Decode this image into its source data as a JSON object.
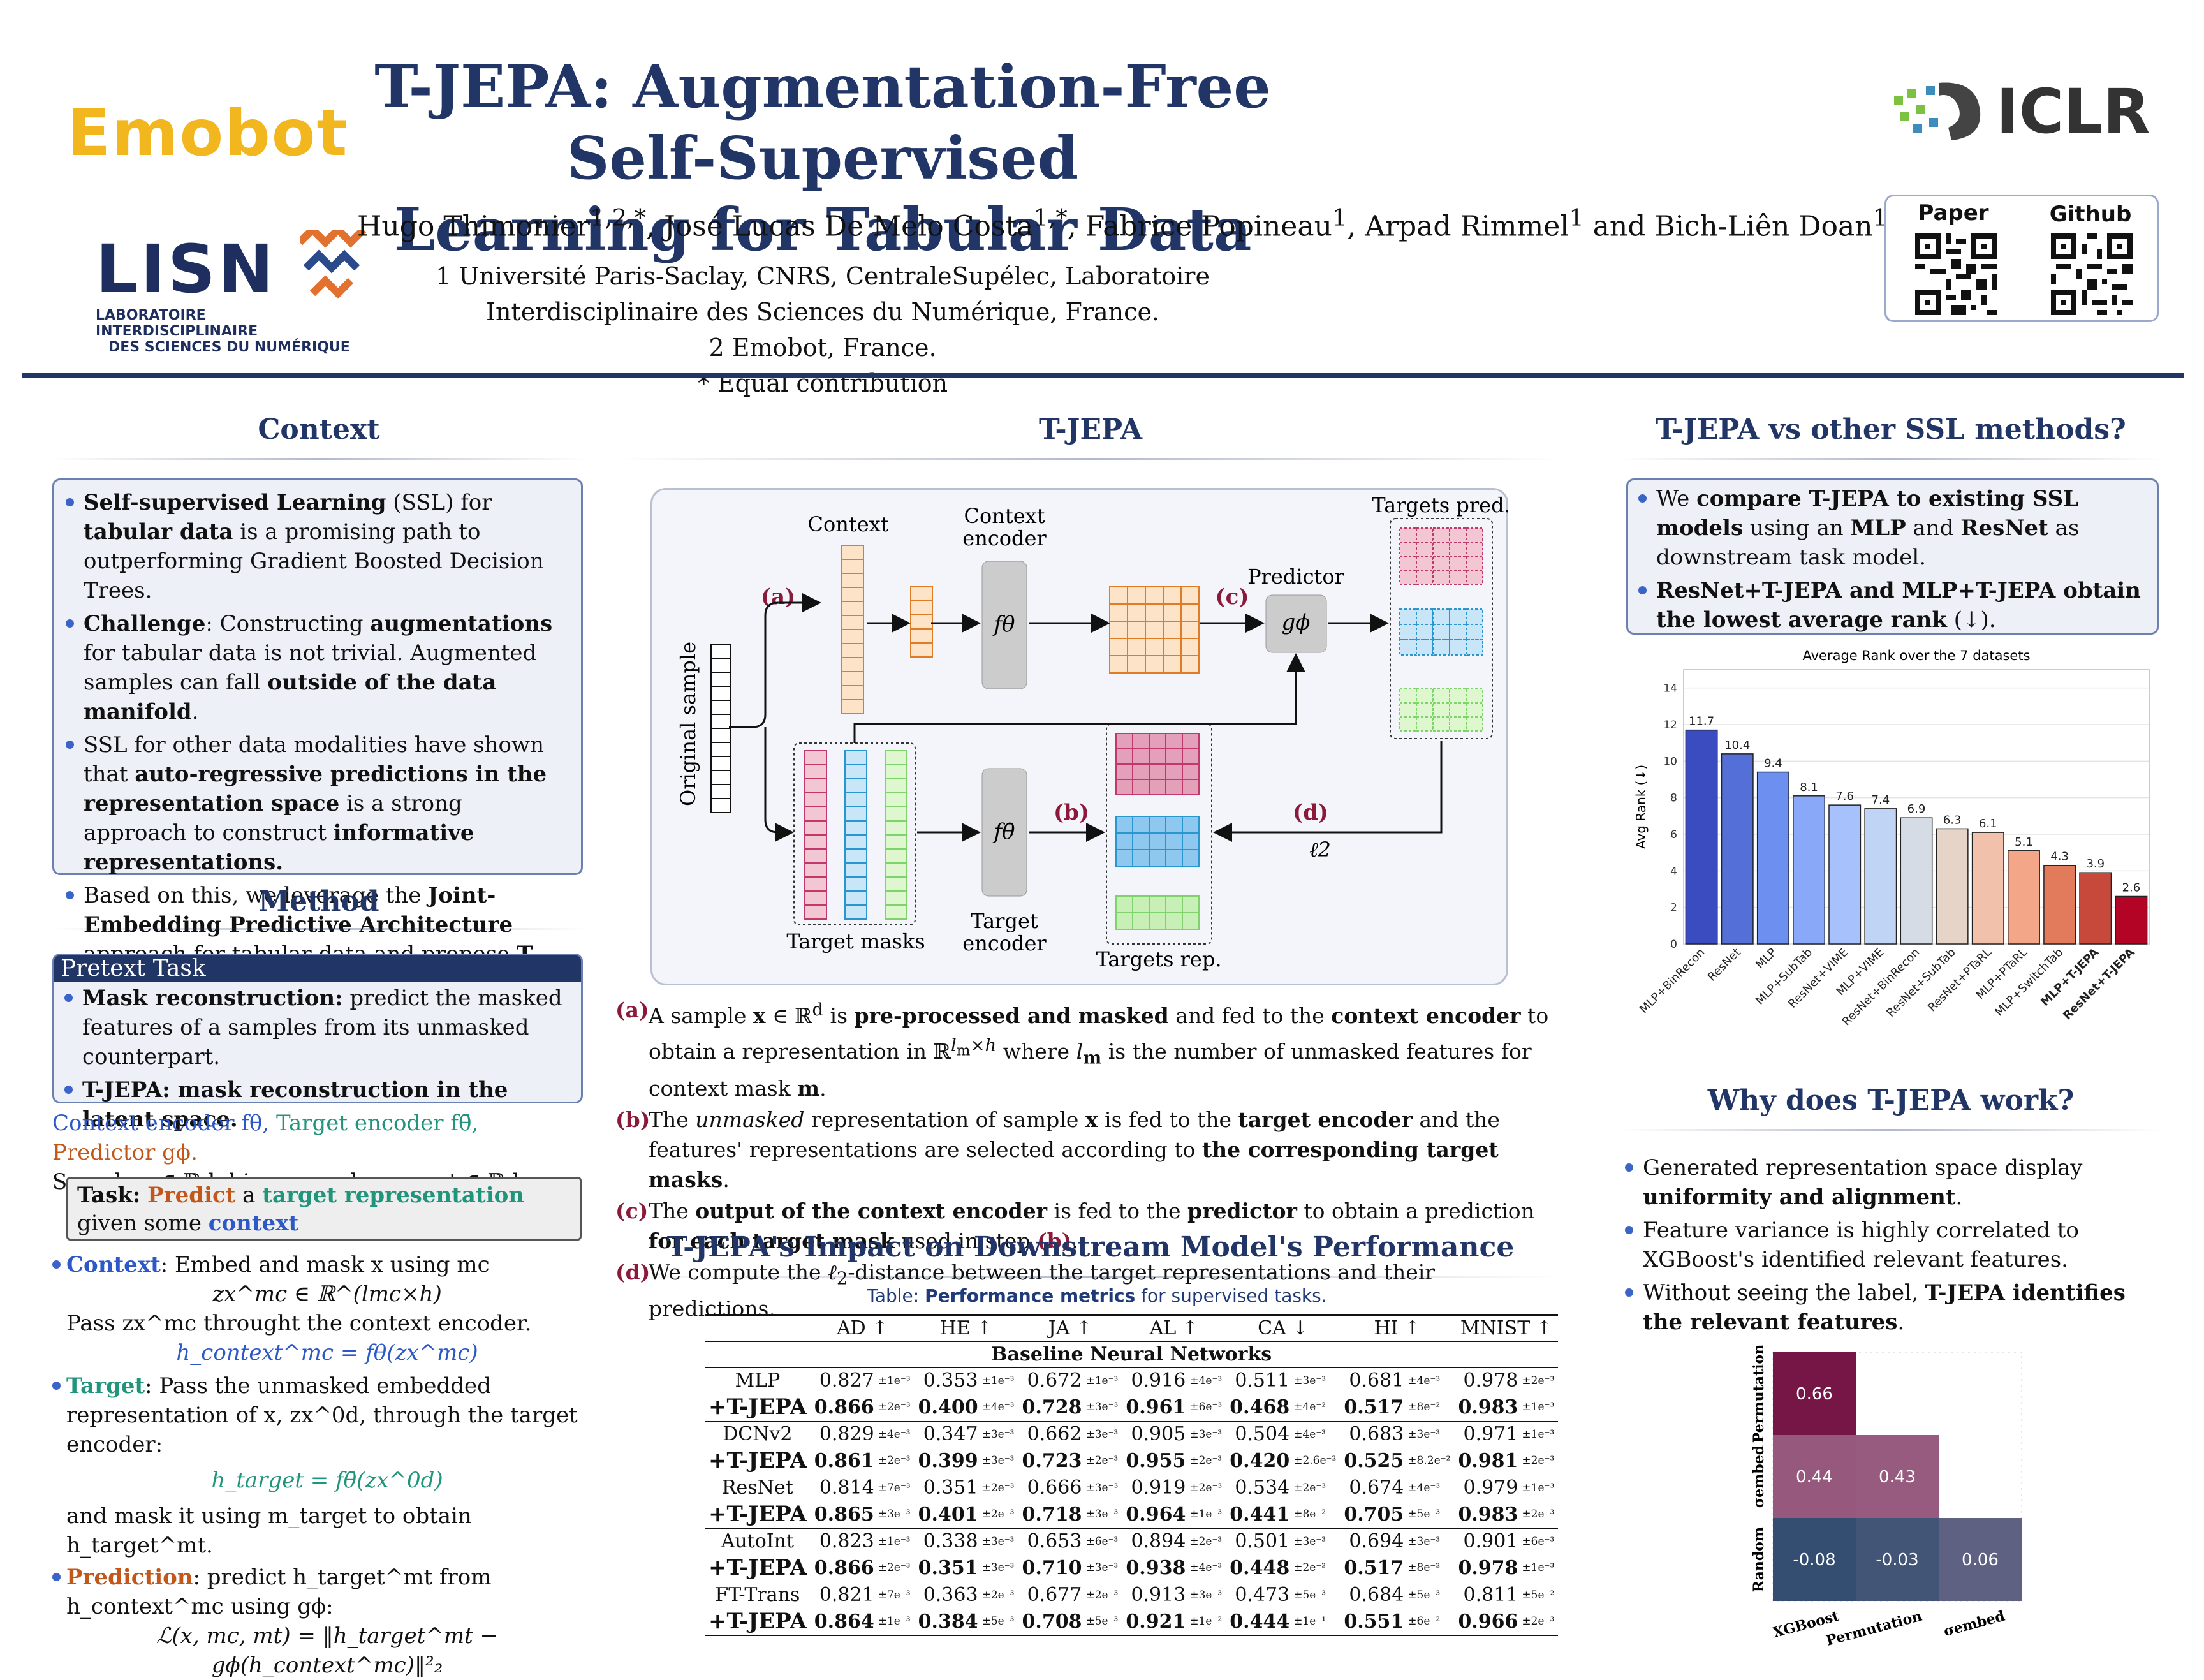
{
  "header": {
    "title_line1": "T-JEPA: Augmentation-Free Self-Supervised",
    "title_line2": "Learning for Tabular Data",
    "authors": "Hugo Thimonier1,2,*, José Lucas De Melo Costa1,*, Fabrice Popineau1, Arpad Rimmel1 and Bich-Liên Doan1",
    "affiliation1": "1 Université Paris-Saclay, CNRS, CentraleSupélec, Laboratoire Interdisciplinaire des Sciences du Numérique, France.",
    "affiliation2": "2 Emobot, France.",
    "affiliation3": "* Equal contribution",
    "logo_emobot": "Emobot",
    "logo_lisn": "LISN",
    "logo_lisn_sub1": "LABORATOIRE INTERDISCIPLINAIRE",
    "logo_lisn_sub2": "DES SCIENCES DU NUMÉRIQUE",
    "logo_iclr": "ICLR",
    "qr_paper_label": "Paper",
    "qr_github_label": "Github"
  },
  "context": {
    "heading": "Context",
    "bullets": [
      "Self-supervised Learning (SSL) for tabular data is a promising path to outperforming Gradient Boosted Decision Trees.",
      "Challenge: Constructing augmentations for tabular data is not trivial. Augmented samples can fall outside of the data manifold.",
      "SSL for other data modalities have shown that auto-regressive predictions in the representation space is a strong approach to construct informative representations.",
      "Based on this, we leverage the Joint-Embedding Predictive Architecture approach for tabular data and propose T-JEPA."
    ]
  },
  "method": {
    "heading": "Method",
    "pretext_title": "Pretext Task",
    "pretext_bullets": [
      "Mask reconstruction: predict the masked features of a samples from its unmasked counterpart.",
      "T-JEPA: mask reconstruction in the latent space."
    ],
    "notation_line1_a": "Context encoder fθ,",
    "notation_line1_b": "Target encoder fθ̄,",
    "notation_line1_c": "Predictor gϕ.",
    "notation_line2": "Sample x ∈ ℝd, binary masks mc, mt ∈ ℝd.",
    "task_label": "Task:",
    "task_predict": "Predict",
    "task_a": "a",
    "task_target": "target representation",
    "task_given": "given some",
    "task_context": "context",
    "context_label": "Context",
    "context_text": ": Embed and mask x using mc",
    "context_eq1": "zx^mc ∈ ℝ^(lmc×h)",
    "context_text2": "Pass zx^mc throught the context encoder.",
    "context_eq2": "h_context^mc = fθ(zx^mc)",
    "target_label": "Target",
    "target_text": ": Pass the unmasked embedded representation of x, zx^0d, through the target encoder:",
    "target_eq": "h_target = fθ̄(zx^0d)",
    "target_text2": "and mask it using m_target to obtain h_target^mt.",
    "prediction_label": "Prediction",
    "prediction_text": ": predict h_target^mt from h_context^mc using gϕ:",
    "loss_eq": "ℒ(x, mc, mt) = ‖h_target^mt − gϕ(h_context^mc)‖²₂"
  },
  "tjepa": {
    "heading": "T-JEPA",
    "diagram": {
      "original_sample": "Original sample",
      "context": "Context",
      "context_encoder1": "Context",
      "context_encoder2": "encoder",
      "f_theta": "fθ",
      "predictor": "Predictor",
      "g_phi": "gϕ",
      "targets_pred": "Targets pred.",
      "target_masks": "Target masks",
      "f_theta_bar": "fθ̄",
      "target_encoder1": "Target",
      "target_encoder2": "encoder",
      "targets_rep": "Targets rep.",
      "l2": "ℓ2",
      "step_a": "(a)",
      "step_b": "(b)",
      "step_c": "(c)",
      "step_d": "(d)"
    },
    "steps": [
      {
        "tag": "(a)",
        "text": "A sample x ∈ ℝd is pre-processed and masked and fed to the context encoder to obtain a representation in ℝ^(lm×h) where lm is the number of unmasked features for context mask m."
      },
      {
        "tag": "(b)",
        "text": "The unmasked representation of sample x is fed to the target encoder and the features' representations are selected according to the corresponding target masks."
      },
      {
        "tag": "(c)",
        "text": "The output of the context encoder is fed to the predictor to obtain a prediction for each target mask used in step (b)."
      },
      {
        "tag": "(d)",
        "text": "We compute the ℓ2-distance between the target representations and their predictions."
      }
    ]
  },
  "impact": {
    "heading": "T-JEPA's Impact on Downstream Model's Performance",
    "caption_prefix": "Table:",
    "caption_bold": "Performance metrics",
    "caption_rest": "for supervised tasks.",
    "columns": [
      "AD ↑",
      "HE ↑",
      "JA ↑",
      "AL ↑",
      "CA ↓",
      "HI ↑",
      "MNIST ↑"
    ],
    "group": "Baseline Neural Networks",
    "rows": [
      {
        "name": "MLP",
        "bold": false,
        "cells": [
          [
            "0.827",
            "±1e⁻³"
          ],
          [
            "0.353",
            "±1e⁻³"
          ],
          [
            "0.672",
            "±1e⁻³"
          ],
          [
            "0.916",
            "±4e⁻³"
          ],
          [
            "0.511",
            "±3e⁻³"
          ],
          [
            "0.681",
            "±4e⁻³"
          ],
          [
            "0.978",
            "±2e⁻³"
          ]
        ]
      },
      {
        "name": "+T-JEPA",
        "bold": true,
        "cells": [
          [
            "0.866",
            "±2e⁻³"
          ],
          [
            "0.400",
            "±4e⁻³"
          ],
          [
            "0.728",
            "±3e⁻³"
          ],
          [
            "0.961",
            "±6e⁻³"
          ],
          [
            "0.468",
            "±4e⁻²"
          ],
          [
            "0.517",
            "±8e⁻²"
          ],
          [
            "0.983",
            "±1e⁻³"
          ]
        ]
      },
      {
        "name": "DCNv2",
        "bold": false,
        "cells": [
          [
            "0.829",
            "±4e⁻³"
          ],
          [
            "0.347",
            "±3e⁻³"
          ],
          [
            "0.662",
            "±3e⁻³"
          ],
          [
            "0.905",
            "±3e⁻³"
          ],
          [
            "0.504",
            "±4e⁻³"
          ],
          [
            "0.683",
            "±3e⁻³"
          ],
          [
            "0.971",
            "±1e⁻³"
          ]
        ]
      },
      {
        "name": "+T-JEPA",
        "bold": true,
        "cells": [
          [
            "0.861",
            "±2e⁻³"
          ],
          [
            "0.399",
            "±3e⁻³"
          ],
          [
            "0.723",
            "±2e⁻³"
          ],
          [
            "0.955",
            "±2e⁻³"
          ],
          [
            "0.420",
            "±2.6e⁻²"
          ],
          [
            "0.525",
            "±8.2e⁻²"
          ],
          [
            "0.981",
            "±2e⁻³"
          ]
        ]
      },
      {
        "name": "ResNet",
        "bold": false,
        "cells": [
          [
            "0.814",
            "±7e⁻³"
          ],
          [
            "0.351",
            "±2e⁻³"
          ],
          [
            "0.666",
            "±3e⁻³"
          ],
          [
            "0.919",
            "±2e⁻³"
          ],
          [
            "0.534",
            "±2e⁻³"
          ],
          [
            "0.674",
            "±4e⁻³"
          ],
          [
            "0.979",
            "±1e⁻³"
          ]
        ]
      },
      {
        "name": "+T-JEPA",
        "bold": true,
        "cells": [
          [
            "0.865",
            "±3e⁻³"
          ],
          [
            "0.401",
            "±2e⁻³"
          ],
          [
            "0.718",
            "±3e⁻³"
          ],
          [
            "0.964",
            "±1e⁻³"
          ],
          [
            "0.441",
            "±8e⁻²"
          ],
          [
            "0.705",
            "±5e⁻³"
          ],
          [
            "0.983",
            "±2e⁻³"
          ]
        ]
      },
      {
        "name": "AutoInt",
        "bold": false,
        "cells": [
          [
            "0.823",
            "±1e⁻³"
          ],
          [
            "0.338",
            "±3e⁻³"
          ],
          [
            "0.653",
            "±6e⁻³"
          ],
          [
            "0.894",
            "±2e⁻³"
          ],
          [
            "0.501",
            "±3e⁻³"
          ],
          [
            "0.694",
            "±3e⁻³"
          ],
          [
            "0.901",
            "±6e⁻³"
          ]
        ]
      },
      {
        "name": "+T-JEPA",
        "bold": true,
        "cells": [
          [
            "0.866",
            "±2e⁻³"
          ],
          [
            "0.351",
            "±3e⁻³"
          ],
          [
            "0.710",
            "±3e⁻³"
          ],
          [
            "0.938",
            "±4e⁻³"
          ],
          [
            "0.448",
            "±2e⁻²"
          ],
          [
            "0.517",
            "±8e⁻²"
          ],
          [
            "0.978",
            "±1e⁻³"
          ]
        ]
      },
      {
        "name": "FT-Trans",
        "bold": false,
        "cells": [
          [
            "0.821",
            "±7e⁻³"
          ],
          [
            "0.363",
            "±2e⁻³"
          ],
          [
            "0.677",
            "±2e⁻³"
          ],
          [
            "0.913",
            "±3e⁻³"
          ],
          [
            "0.473",
            "±5e⁻³"
          ],
          [
            "0.684",
            "±5e⁻³"
          ],
          [
            "0.811",
            "±5e⁻²"
          ]
        ]
      },
      {
        "name": "+T-JEPA",
        "bold": true,
        "cells": [
          [
            "0.864",
            "±1e⁻³"
          ],
          [
            "0.384",
            "±5e⁻³"
          ],
          [
            "0.708",
            "±5e⁻³"
          ],
          [
            "0.921",
            "±1e⁻²"
          ],
          [
            "0.444",
            "±1e⁻¹"
          ],
          [
            "0.551",
            "±6e⁻²"
          ],
          [
            "0.966",
            "±2e⁻³"
          ]
        ]
      }
    ]
  },
  "vs_ssl": {
    "heading": "T-JEPA vs other SSL methods?",
    "bullet1": "We compare T-JEPA to existing SSL models using an MLP and ResNet as downstream task model.",
    "bullet2": "ResNet+T-JEPA and MLP+T-JEPA obtain the lowest average rank (↓)."
  },
  "chart_data": {
    "type": "bar",
    "title": "Average Rank over the 7 datasets",
    "ylabel": "Avg Rank (↓)",
    "ylim": [
      0,
      15
    ],
    "yticks": [
      0,
      2,
      4,
      6,
      8,
      10,
      12,
      14
    ],
    "grid": true,
    "categories": [
      "MLP+BinRecon",
      "ResNet",
      "MLP",
      "MLP+SubTab",
      "ResNet+VIME",
      "MLP+VIME",
      "ResNet+BinRecon",
      "ResNet+SubTab",
      "ResNet+PTaRL",
      "MLP+PTaRL",
      "MLP+SwitchTab",
      "MLP+T-JEPA",
      "ResNet+T-JEPA"
    ],
    "values": [
      11.7,
      10.4,
      9.4,
      8.1,
      7.6,
      7.4,
      6.9,
      6.3,
      6.1,
      5.1,
      4.3,
      3.9,
      2.6
    ],
    "value_labels": [
      "11.7",
      "10.4",
      "9.4",
      "8.1",
      "7.6",
      "7.4",
      "6.9",
      "6.3",
      "6.1",
      "5.1",
      "4.3",
      "3.9",
      "2.6"
    ],
    "colors": [
      "#3b4cc0",
      "#5470d8",
      "#6c8ff0",
      "#89a8f8",
      "#a6c1fb",
      "#c0d4f5",
      "#d6dce6",
      "#e6d4c9",
      "#f2c1ab",
      "#f3a688",
      "#e27a5c",
      "#c6493c",
      "#b40426"
    ]
  },
  "why": {
    "heading": "Why does T-JEPA work?",
    "bullets": [
      "Generated representation space display uniformity and alignment.",
      "Feature variance is highly correlated to XGBoost's identified relevant features.",
      "Without seeing the label, T-JEPA identifies the relevant features."
    ],
    "heatmap": {
      "row_labels": [
        "Permutation",
        "σembed",
        "Random"
      ],
      "col_labels": [
        "XGBoost",
        "Permutation",
        "σembed"
      ],
      "cells": [
        {
          "label": "0.66",
          "value": 0.66
        },
        {
          "label": "0.44",
          "value": 0.44
        },
        {
          "label": "0.43",
          "value": 0.43
        },
        {
          "label": "-0.08",
          "value": -0.08
        },
        {
          "label": "-0.03",
          "value": -0.03
        },
        {
          "label": "0.06",
          "value": 0.06
        }
      ]
    }
  },
  "colors": {
    "navy": "#223567",
    "accent_blue": "#2d58c8",
    "teal": "#21957c",
    "orange": "#c2571a",
    "crimson": "#a0152e"
  }
}
